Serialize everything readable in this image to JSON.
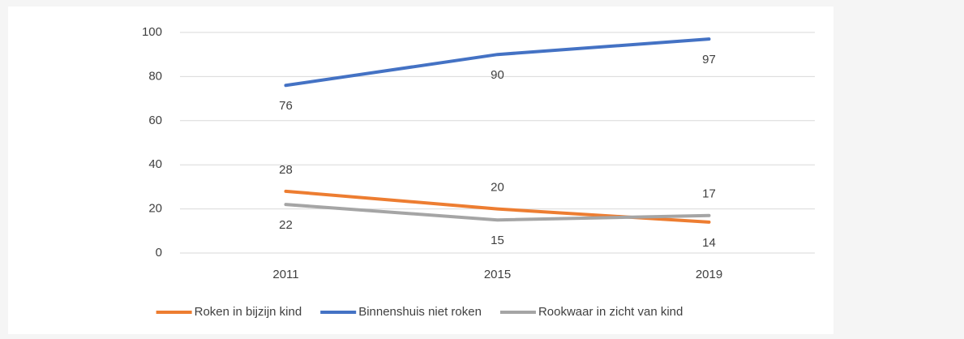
{
  "chart_data": {
    "type": "line",
    "categories": [
      "2011",
      "2015",
      "2019"
    ],
    "series": [
      {
        "name": "Roken in bijzijn kind",
        "color": "#ed7d31",
        "values": [
          28,
          20,
          14
        ]
      },
      {
        "name": "Binnenshuis niet roken",
        "color": "#4472c4",
        "values": [
          76,
          90,
          97
        ]
      },
      {
        "name": "Rookwaar in zicht van kind",
        "color": "#a5a5a5",
        "values": [
          22,
          15,
          17
        ]
      }
    ],
    "ylim": [
      0,
      100
    ],
    "yticks": [
      0,
      20,
      40,
      60,
      80,
      100
    ],
    "grid": true,
    "legend": "bottom"
  }
}
